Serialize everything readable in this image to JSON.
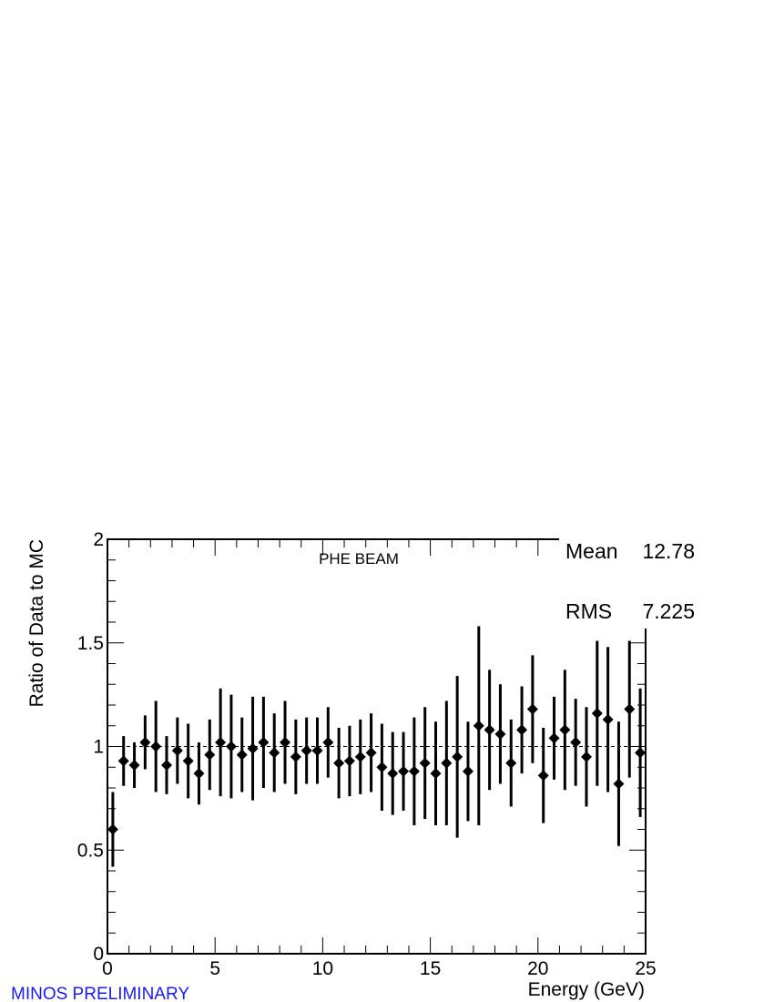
{
  "colors": {
    "marker": "#000000",
    "reference_line": "#000000",
    "preliminary": "#1a1aff"
  },
  "stats": {
    "mean_label": "Mean",
    "mean_value": "12.78",
    "rms_label": "RMS",
    "rms_value": "7.225"
  },
  "footer": {
    "preliminary": "MINOS PRELIMINARY"
  },
  "chart_data": {
    "type": "scatter",
    "title": "PHE BEAM",
    "xlabel": "Energy (GeV)",
    "ylabel": "Ratio of Data to MC",
    "xlim": [
      0,
      25
    ],
    "ylim": [
      0,
      2
    ],
    "x_ticks": [
      0,
      5,
      10,
      15,
      20,
      25
    ],
    "y_ticks": [
      0,
      0.5,
      1,
      1.5,
      2
    ],
    "reference_line": 1,
    "x": [
      0.25,
      0.75,
      1.25,
      1.75,
      2.25,
      2.75,
      3.25,
      3.75,
      4.25,
      4.75,
      5.25,
      5.75,
      6.25,
      6.75,
      7.25,
      7.75,
      8.25,
      8.75,
      9.25,
      9.75,
      10.25,
      10.75,
      11.25,
      11.75,
      12.25,
      12.75,
      13.25,
      13.75,
      14.25,
      14.75,
      15.25,
      15.75,
      16.25,
      16.75,
      17.25,
      17.75,
      18.25,
      18.75,
      19.25,
      19.75,
      20.25,
      20.75,
      21.25,
      21.75,
      22.25,
      22.75,
      23.25,
      23.75,
      24.25,
      24.75
    ],
    "y": [
      0.6,
      0.93,
      0.91,
      1.02,
      1.0,
      0.91,
      0.98,
      0.93,
      0.87,
      0.96,
      1.02,
      1.0,
      0.96,
      0.99,
      1.02,
      0.97,
      1.02,
      0.95,
      0.98,
      0.98,
      1.02,
      0.92,
      0.93,
      0.95,
      0.97,
      0.9,
      0.87,
      0.88,
      0.88,
      0.92,
      0.87,
      0.92,
      0.95,
      0.88,
      1.1,
      1.08,
      1.06,
      0.92,
      1.08,
      1.18,
      0.86,
      1.04,
      1.08,
      1.02,
      0.95,
      1.16,
      1.13,
      0.82,
      1.18,
      0.97
    ],
    "err": [
      0.18,
      0.12,
      0.11,
      0.13,
      0.22,
      0.14,
      0.16,
      0.18,
      0.15,
      0.17,
      0.26,
      0.25,
      0.18,
      0.25,
      0.22,
      0.19,
      0.2,
      0.18,
      0.16,
      0.16,
      0.17,
      0.17,
      0.17,
      0.18,
      0.19,
      0.21,
      0.2,
      0.19,
      0.26,
      0.27,
      0.25,
      0.3,
      0.39,
      0.24,
      0.48,
      0.29,
      0.24,
      0.21,
      0.21,
      0.26,
      0.23,
      0.2,
      0.29,
      0.21,
      0.24,
      0.35,
      0.35,
      0.3,
      0.33,
      0.31
    ]
  }
}
